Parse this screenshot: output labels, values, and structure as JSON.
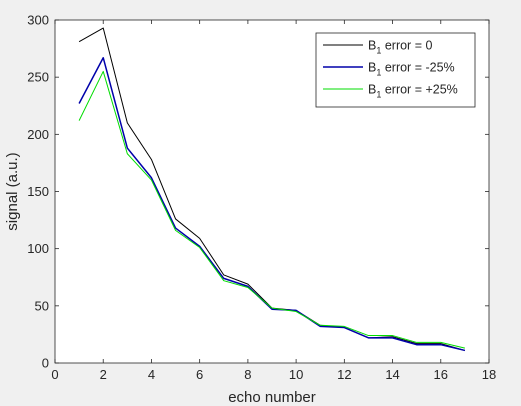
{
  "chart_data": {
    "type": "line",
    "xlabel": "echo number",
    "ylabel": "signal (a.u.)",
    "xlim": [
      0,
      18
    ],
    "ylim": [
      0,
      300
    ],
    "xticks": [
      0,
      2,
      4,
      6,
      8,
      10,
      12,
      14,
      16,
      18
    ],
    "yticks": [
      0,
      50,
      100,
      150,
      200,
      250,
      300
    ],
    "grid": false,
    "legend_position": "top-right",
    "x": [
      1,
      2,
      3,
      4,
      5,
      6,
      7,
      8,
      9,
      10,
      11,
      12,
      13,
      14,
      15,
      16,
      17
    ],
    "series": [
      {
        "name_prefix": "B",
        "name_subscript": "1",
        "name_suffix": " error = 0",
        "color": "#000000",
        "values": [
          281,
          293,
          210,
          178,
          126,
          109,
          77,
          69,
          48,
          46,
          33,
          31,
          22,
          23,
          17,
          17,
          11
        ]
      },
      {
        "name_prefix": "B",
        "name_subscript": "1",
        "name_suffix": " error = -25%",
        "color": "#0000aa",
        "values": [
          227,
          267,
          188,
          162,
          118,
          102,
          74,
          67,
          47,
          46,
          32,
          31,
          22,
          22,
          16,
          16,
          11
        ]
      },
      {
        "name_prefix": "B",
        "name_subscript": "1",
        "name_suffix": " error = +25%",
        "color": "#00dd00",
        "values": [
          212,
          255,
          183,
          160,
          116,
          101,
          72,
          66,
          48,
          45,
          33,
          32,
          24,
          24,
          18,
          18,
          13
        ]
      }
    ]
  }
}
